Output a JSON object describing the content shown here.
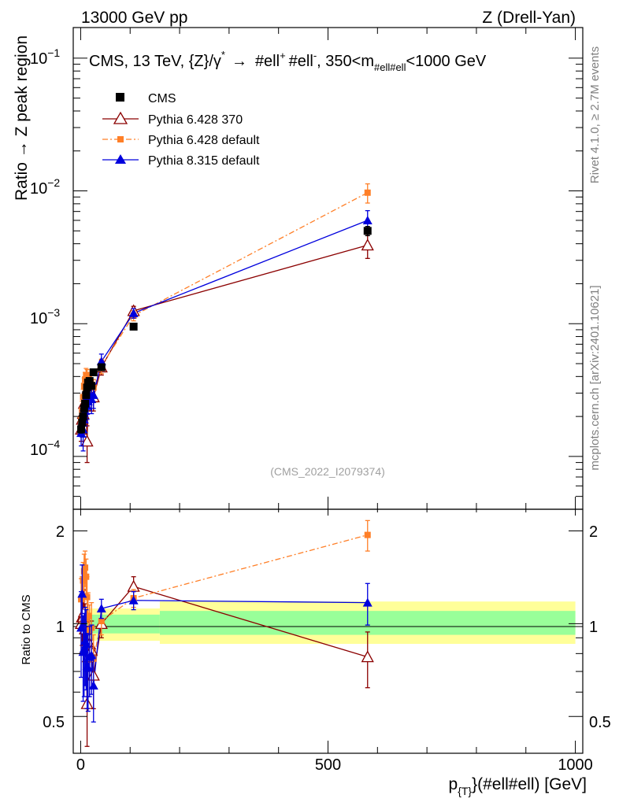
{
  "header": {
    "left": "13000 GeV pp",
    "right": "Z (Drell-Yan)"
  },
  "side_text": {
    "rivet": "Rivet 4.1.0, ≥ 2.7M events",
    "mcplots": "mcplots.cern.ch [arXiv:2401.10621]"
  },
  "colors": {
    "cms": "#000000",
    "py6_370": "#8b0000",
    "py6_default": "#ff7f27",
    "py8": "#0000dd",
    "band_green": "#99ff99",
    "band_yellow": "#ffff99"
  },
  "chart_data": {
    "type": "line",
    "title_parts": {
      "prefix": "CMS, 13 TeV, {Z}/γ",
      "star": "*",
      "arrow": "→",
      "lep1": "#ell",
      "lep1_sup": "+",
      "lep2": "#ell",
      "lep2_sup": "-",
      "cut_lo": ", 350<m",
      "cut_sub": "#ell#ell",
      "cut_hi": "<1000 GeV"
    },
    "watermark": "(CMS_2022_I2079374)",
    "ylabel_main": "Ratio → Z peak region",
    "ylabel_ratio": "Ratio to CMS",
    "xlabel_main": "p",
    "xlabel_sub": "{T}",
    "xlabel_rest": "}(#ell#ell) [GeV]",
    "xlim": [
      -15,
      1015
    ],
    "ylim_main": [
      4e-05,
      0.17
    ],
    "ylim_ratio": [
      0.38,
      2.35
    ],
    "xticks": [
      {
        "v": 0,
        "label": "0"
      },
      {
        "v": 500,
        "label": "500"
      },
      {
        "v": 1000,
        "label": "1000"
      }
    ],
    "yticks_main": [
      {
        "v": 0.1,
        "base": "10",
        "exp": "−1"
      },
      {
        "v": 0.01,
        "base": "10",
        "exp": "−2"
      },
      {
        "v": 0.001,
        "base": "10",
        "exp": "−3"
      },
      {
        "v": 0.0001,
        "base": "10",
        "exp": "−4"
      }
    ],
    "yticks_ratio": [
      {
        "v": 0.5,
        "label": "0.5"
      },
      {
        "v": 1,
        "label": "1"
      },
      {
        "v": 2,
        "label": "2"
      }
    ],
    "bands": [
      {
        "x0": 0,
        "x1": 160,
        "g_lo": 0.93,
        "g_hi": 1.07,
        "y_lo": 0.88,
        "y_hi": 1.12
      },
      {
        "x0": 160,
        "x1": 1000,
        "g_lo": 0.92,
        "g_hi": 1.1,
        "y_lo": 0.86,
        "y_hi": 1.18
      }
    ],
    "cms": {
      "name": "CMS",
      "x": [
        1,
        3,
        5,
        7,
        9,
        11,
        13,
        15,
        18,
        22,
        26,
        42,
        107,
        580
      ],
      "y": [
        0.00016,
        0.00018,
        0.0002,
        0.00023,
        0.00025,
        0.00029,
        0.00033,
        0.00036,
        0.00037,
        0.00034,
        0.00043,
        0.00047,
        0.00095,
        0.005
      ],
      "yerr": [
        1e-05,
        1e-05,
        1e-05,
        1e-05,
        1e-05,
        1e-05,
        1e-05,
        1e-05,
        1e-05,
        1e-05,
        2e-05,
        2e-05,
        4e-05,
        0.0004
      ]
    },
    "series": [
      {
        "name": "Pythia 6.428 370",
        "key": "py6_370",
        "marker": "open-triangle",
        "dash": "",
        "x": [
          1,
          3,
          5,
          7,
          9,
          11,
          13,
          15,
          18,
          22,
          26,
          42,
          107,
          580
        ],
        "y": [
          0.00016,
          0.00019,
          0.00021,
          0.00025,
          0.00024,
          0.00024,
          0.00013,
          0.00028,
          0.00032,
          0.00028,
          0.00028,
          0.00047,
          0.00125,
          0.0039
        ],
        "yerr": [
          3e-05,
          4e-05,
          4e-05,
          5e-05,
          5e-05,
          5e-05,
          4e-05,
          6e-05,
          6e-05,
          6e-05,
          6e-05,
          6e-05,
          0.0001,
          0.0008
        ],
        "ratio": [
          1.0,
          1.05,
          1.05,
          1.09,
          0.96,
          0.83,
          0.55,
          0.78,
          0.86,
          0.82,
          0.68,
          1.0,
          1.32,
          0.78
        ],
        "ratio_err": [
          0.2,
          0.2,
          0.2,
          0.2,
          0.2,
          0.2,
          0.15,
          0.2,
          0.2,
          0.2,
          0.15,
          0.1,
          0.1,
          0.16
        ]
      },
      {
        "name": "Pythia 6.428 default",
        "key": "py6_default",
        "marker": "square",
        "dash": "7,3,2,3",
        "x": [
          1,
          3,
          5,
          7,
          9,
          11,
          13,
          15,
          18,
          22,
          26,
          42,
          107,
          580
        ],
        "y": [
          0.00019,
          0.00022,
          0.00028,
          0.00034,
          0.00038,
          0.00041,
          0.0004,
          0.00038,
          0.00035,
          0.00033,
          0.00033,
          0.00048,
          0.00115,
          0.0097
        ],
        "yerr": [
          3e-05,
          4e-05,
          4e-05,
          5e-05,
          5e-05,
          5e-05,
          5e-05,
          5e-05,
          5e-05,
          5e-05,
          5e-05,
          6e-05,
          0.0001,
          0.0016
        ],
        "ratio": [
          1.2,
          1.22,
          1.38,
          1.48,
          1.52,
          1.42,
          1.22,
          1.06,
          0.95,
          0.97,
          0.77,
          1.02,
          1.21,
          1.94
        ],
        "ratio_err": [
          0.2,
          0.2,
          0.2,
          0.2,
          0.2,
          0.2,
          0.2,
          0.2,
          0.2,
          0.2,
          0.15,
          0.1,
          0.08,
          0.22
        ]
      },
      {
        "name": "Pythia 8.315 default",
        "key": "py8",
        "marker": "triangle",
        "dash": "",
        "x": [
          1,
          3,
          5,
          7,
          9,
          11,
          13,
          15,
          18,
          22,
          26,
          42,
          107,
          580
        ],
        "y": [
          0.00015,
          0.00018,
          0.00016,
          0.00019,
          0.00022,
          0.00025,
          0.00024,
          0.00026,
          0.00029,
          0.00027,
          0.00029,
          0.00052,
          0.0012,
          0.006
        ],
        "yerr": [
          3e-05,
          4e-05,
          5e-05,
          5e-05,
          5e-05,
          5e-05,
          5e-05,
          5e-05,
          6e-05,
          6e-05,
          6e-05,
          7e-05,
          0.0001,
          0.0011
        ],
        "ratio": [
          0.97,
          1.25,
          0.81,
          0.83,
          0.88,
          0.86,
          0.73,
          0.72,
          0.78,
          0.79,
          0.63,
          1.12,
          1.19,
          1.17
        ],
        "ratio_err": [
          0.3,
          0.3,
          0.25,
          0.25,
          0.25,
          0.25,
          0.2,
          0.2,
          0.2,
          0.2,
          0.15,
          0.08,
          0.08,
          0.18
        ]
      }
    ]
  }
}
